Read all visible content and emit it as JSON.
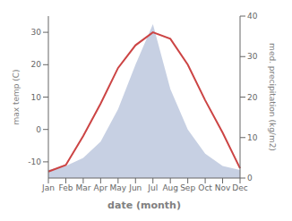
{
  "chart_data": {
    "type": "line",
    "categories": [
      "Jan",
      "Feb",
      "Mar",
      "Apr",
      "May",
      "Jun",
      "Jul",
      "Aug",
      "Sep",
      "Oct",
      "Nov",
      "Dec"
    ],
    "xlabel": "date (month)",
    "ylabel": "max temp (C)",
    "y2label": "med. precipitation (kg/m2)",
    "ylim": [
      -15,
      35
    ],
    "yticks": [
      -10,
      0,
      10,
      20,
      30
    ],
    "y2lim": [
      0,
      40
    ],
    "y2ticks": [
      0,
      10,
      20,
      30,
      40
    ],
    "grid": false,
    "series": [
      {
        "name": "med. precipitation (kg/m2)",
        "type": "area",
        "axis": "y2",
        "color": "#99aacc",
        "values": [
          2,
          3,
          5,
          9,
          17,
          28,
          38,
          22,
          12,
          6,
          3,
          2
        ]
      },
      {
        "name": "max temp (C)",
        "type": "line",
        "color": "#cc4444",
        "values": [
          -13,
          -11,
          -2,
          8,
          19,
          26,
          30,
          28,
          20,
          9,
          -1,
          -12
        ]
      }
    ]
  }
}
